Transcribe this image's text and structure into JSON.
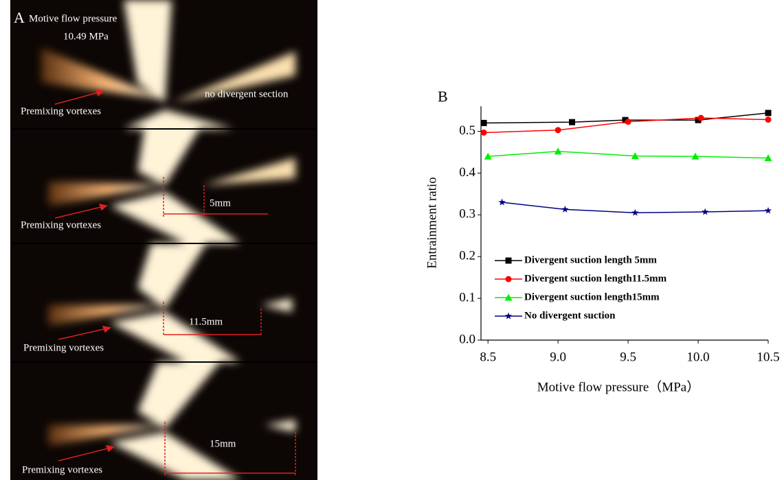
{
  "panel_a": {
    "label": "A",
    "pressure_label": "Motive flow pressure",
    "pressure_value": "10.49 MPa",
    "no_divergent_label": "no divergent section",
    "vortex_labels": [
      "Premixing vortexes",
      "Premixing vortexes",
      "Premixing vortexes",
      "Premixing vortexes"
    ],
    "length_labels": [
      "5mm",
      "11.5mm",
      "15mm"
    ]
  },
  "chart_data": {
    "type": "line",
    "title": "B",
    "x_label": "Motive flow pressure（MPa）",
    "y_label": "Entrainment ratio",
    "xlim": [
      8.45,
      10.5
    ],
    "xticks": [
      {
        "value": 8.5,
        "label": "8.5"
      },
      {
        "value": 9.0,
        "label": "9.0"
      },
      {
        "value": 9.5,
        "label": "9.5"
      },
      {
        "value": 10.0,
        "label": "10.0"
      },
      {
        "value": 10.5,
        "label": "10.5"
      }
    ],
    "ylim": [
      0,
      0.56
    ],
    "yticks": [
      {
        "value": 0,
        "label": "0.0"
      },
      0.1,
      0.2,
      0.3,
      0.4,
      0.5
    ],
    "series": [
      {
        "name": "Divergent suction length 5mm",
        "color": "#000000",
        "marker": "square",
        "x": [
          8.47,
          9.1,
          9.48,
          10.0,
          10.5
        ],
        "values": [
          0.52,
          0.522,
          0.527,
          0.527,
          0.544
        ]
      },
      {
        "name": "Divergent suction length11.5mm",
        "color": "#ff0000",
        "marker": "circle",
        "x": [
          8.47,
          9.0,
          9.5,
          10.02,
          10.5
        ],
        "values": [
          0.497,
          0.503,
          0.523,
          0.532,
          0.528
        ]
      },
      {
        "name": "Divergent suction length15mm",
        "color": "#00ee00",
        "marker": "triangle",
        "x": [
          8.5,
          9.0,
          9.55,
          9.98,
          10.5
        ],
        "values": [
          0.44,
          0.452,
          0.441,
          0.44,
          0.436
        ]
      },
      {
        "name": "No divergent suction",
        "color": "#000080",
        "marker": "star",
        "x": [
          8.6,
          9.05,
          9.55,
          10.05,
          10.5
        ],
        "values": [
          0.33,
          0.313,
          0.305,
          0.307,
          0.31
        ]
      }
    ]
  }
}
